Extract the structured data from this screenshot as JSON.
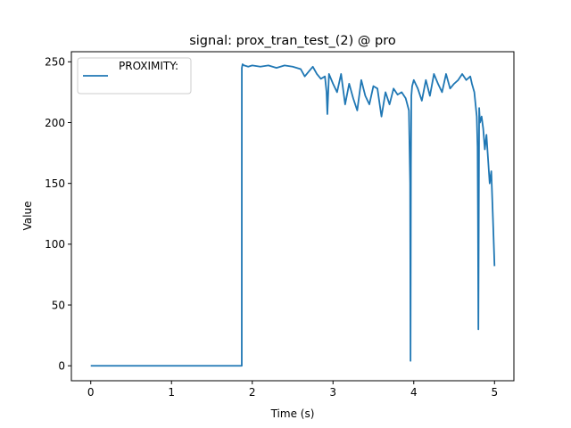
{
  "chart_data": {
    "type": "line",
    "title": "signal: prox_tran_test_(2) @ pro",
    "xlabel": "Time (s)",
    "ylabel": "Value",
    "xlim": [
      -0.24,
      5.24
    ],
    "ylim": [
      -12.3,
      258.3
    ],
    "xticks": [
      0,
      1,
      2,
      3,
      4,
      5
    ],
    "yticks": [
      0,
      50,
      100,
      150,
      200,
      250
    ],
    "grid": false,
    "legend": {
      "position": "top-left",
      "entries": [
        "PROXIMITY:"
      ]
    },
    "series": [
      {
        "name": "PROXIMITY:",
        "color": "#1f77b4",
        "x": [
          0,
          0.5,
          1.0,
          1.5,
          1.87,
          1.871,
          1.88,
          1.9,
          1.95,
          2.0,
          2.1,
          2.2,
          2.3,
          2.4,
          2.5,
          2.6,
          2.65,
          2.7,
          2.75,
          2.8,
          2.85,
          2.9,
          2.92,
          2.93,
          2.95,
          3.0,
          3.05,
          3.1,
          3.15,
          3.2,
          3.25,
          3.3,
          3.35,
          3.4,
          3.45,
          3.5,
          3.55,
          3.6,
          3.65,
          3.7,
          3.75,
          3.8,
          3.85,
          3.9,
          3.94,
          3.955,
          3.96,
          3.965,
          3.97,
          3.98,
          4.0,
          4.05,
          4.1,
          4.15,
          4.2,
          4.25,
          4.3,
          4.35,
          4.4,
          4.45,
          4.5,
          4.55,
          4.6,
          4.65,
          4.7,
          4.72,
          4.75,
          4.78,
          4.79,
          4.795,
          4.8,
          4.81,
          4.82,
          4.84,
          4.86,
          4.88,
          4.9,
          4.92,
          4.94,
          4.96,
          4.98,
          5.0
        ],
        "y": [
          0,
          0,
          0,
          0,
          0,
          245,
          248,
          247,
          246,
          247,
          246,
          247,
          245,
          247,
          246,
          244,
          238,
          242,
          246,
          240,
          236,
          238,
          225,
          207,
          240,
          232,
          225,
          240,
          215,
          232,
          220,
          210,
          235,
          222,
          215,
          230,
          228,
          205,
          225,
          215,
          228,
          223,
          225,
          220,
          210,
          150,
          4,
          165,
          222,
          230,
          235,
          228,
          218,
          235,
          222,
          240,
          232,
          225,
          240,
          228,
          232,
          235,
          240,
          235,
          238,
          232,
          225,
          205,
          180,
          120,
          30,
          212,
          200,
          205,
          195,
          178,
          190,
          170,
          150,
          160,
          122,
          82
        ]
      }
    ]
  }
}
